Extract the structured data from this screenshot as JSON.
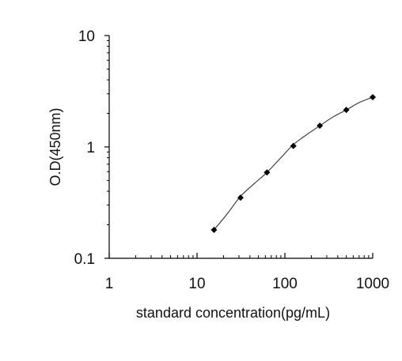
{
  "chart_data": {
    "type": "scatter",
    "x_scale": "log",
    "y_scale": "log",
    "xlim": [
      1,
      1000
    ],
    "ylim": [
      0.1,
      10
    ],
    "xlabel": "standard concentration(pg/mL)",
    "ylabel": "O.D(450nm)",
    "x_ticks": [
      {
        "value": 1,
        "label": "1"
      },
      {
        "value": 10,
        "label": "10"
      },
      {
        "value": 100,
        "label": "100"
      },
      {
        "value": 1000,
        "label": "1000"
      }
    ],
    "y_ticks": [
      {
        "value": 0.1,
        "label": "0.1"
      },
      {
        "value": 1,
        "label": "1"
      },
      {
        "value": 10,
        "label": "10"
      }
    ],
    "grid": false,
    "series": [
      {
        "points": [
          {
            "x": 15.6,
            "y": 0.18
          },
          {
            "x": 31.25,
            "y": 0.35
          },
          {
            "x": 62.5,
            "y": 0.59
          },
          {
            "x": 125,
            "y": 1.02
          },
          {
            "x": 250,
            "y": 1.55
          },
          {
            "x": 500,
            "y": 2.15
          },
          {
            "x": 1000,
            "y": 2.8
          }
        ]
      }
    ],
    "fit_curve": [
      {
        "x": 15.6,
        "y": 0.18
      },
      {
        "x": 22,
        "y": 0.25
      },
      {
        "x": 31.25,
        "y": 0.36
      },
      {
        "x": 45,
        "y": 0.47
      },
      {
        "x": 62.5,
        "y": 0.59
      },
      {
        "x": 90,
        "y": 0.8
      },
      {
        "x": 125,
        "y": 1.05
      },
      {
        "x": 180,
        "y": 1.3
      },
      {
        "x": 250,
        "y": 1.55
      },
      {
        "x": 350,
        "y": 1.85
      },
      {
        "x": 500,
        "y": 2.15
      },
      {
        "x": 700,
        "y": 2.5
      },
      {
        "x": 1000,
        "y": 2.8
      }
    ],
    "colors": {
      "marker": "#000000",
      "line": "#333333",
      "axis": "#000000"
    }
  }
}
